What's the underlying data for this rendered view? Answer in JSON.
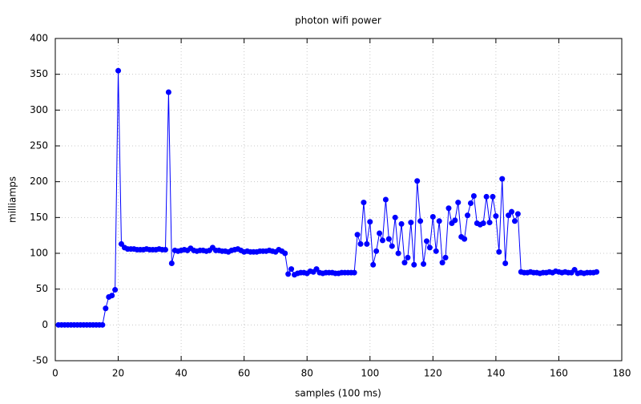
{
  "chart_data": {
    "type": "line",
    "title": "photon wifi power",
    "x_label": "samples (100 ms)",
    "y_label": "milliamps",
    "x": [
      1,
      2,
      3,
      4,
      5,
      6,
      7,
      8,
      9,
      10,
      11,
      12,
      13,
      14,
      15,
      16,
      17,
      18,
      19,
      20,
      21,
      22,
      23,
      24,
      25,
      26,
      27,
      28,
      29,
      30,
      31,
      32,
      33,
      34,
      35,
      36,
      37,
      38,
      39,
      40,
      41,
      42,
      43,
      44,
      45,
      46,
      47,
      48,
      49,
      50,
      51,
      52,
      53,
      54,
      55,
      56,
      57,
      58,
      59,
      60,
      61,
      62,
      63,
      64,
      65,
      66,
      67,
      68,
      69,
      70,
      71,
      72,
      73,
      74,
      75,
      76,
      77,
      78,
      79,
      80,
      81,
      82,
      83,
      84,
      85,
      86,
      87,
      88,
      89,
      90,
      91,
      92,
      93,
      94,
      95,
      96,
      97,
      98,
      99,
      100,
      101,
      102,
      103,
      104,
      105,
      106,
      107,
      108,
      109,
      110,
      111,
      112,
      113,
      114,
      115,
      116,
      117,
      118,
      119,
      120,
      121,
      122,
      123,
      124,
      125,
      126,
      127,
      128,
      129,
      130,
      131,
      132,
      133,
      134,
      135,
      136,
      137,
      138,
      139,
      140,
      141,
      142,
      143,
      144,
      145,
      146,
      147,
      148,
      149,
      150,
      151,
      152,
      153,
      154,
      155,
      156,
      157,
      158,
      159,
      160,
      161,
      162,
      163,
      164,
      165,
      166,
      167,
      168,
      169,
      170,
      171,
      172
    ],
    "series": [
      {
        "color": "#0000ff",
        "values": [
          0,
          0,
          0,
          0,
          0,
          0,
          0,
          0,
          0,
          0,
          0,
          0,
          0,
          0,
          0,
          23,
          39,
          41,
          49,
          355,
          113,
          108,
          106,
          106,
          106,
          105,
          105,
          105,
          106,
          105,
          105,
          105,
          106,
          105,
          105,
          325,
          86,
          104,
          103,
          104,
          105,
          104,
          107,
          104,
          103,
          104,
          104,
          103,
          104,
          108,
          104,
          104,
          103,
          103,
          102,
          104,
          105,
          106,
          104,
          102,
          103,
          102,
          102,
          102,
          103,
          103,
          103,
          104,
          103,
          102,
          105,
          103,
          100,
          71,
          78,
          70,
          72,
          73,
          73,
          72,
          75,
          74,
          78,
          73,
          72,
          73,
          73,
          73,
          72,
          72,
          73,
          73,
          73,
          73,
          73,
          126,
          113,
          171,
          113,
          144,
          84,
          103,
          128,
          118,
          175,
          120,
          110,
          150,
          100,
          141,
          87,
          94,
          143,
          84,
          201,
          145,
          85,
          117,
          108,
          151,
          103,
          145,
          87,
          94,
          163,
          142,
          146,
          171,
          123,
          120,
          153,
          170,
          180,
          142,
          140,
          142,
          179,
          143,
          179,
          152,
          102,
          204,
          86,
          153,
          158,
          145,
          155,
          74,
          73,
          73,
          74,
          73,
          73,
          72,
          73,
          73,
          74,
          73,
          75,
          74,
          73,
          74,
          73,
          73,
          77,
          72,
          73,
          72,
          73,
          73,
          73,
          74
        ]
      }
    ],
    "xlim": [
      0,
      180
    ],
    "xticks": [
      0,
      20,
      40,
      60,
      80,
      100,
      120,
      140,
      160,
      180
    ],
    "ylim": [
      -50,
      400
    ],
    "yticks": [
      -50,
      0,
      50,
      100,
      150,
      200,
      250,
      300,
      350,
      400
    ],
    "grid": true
  }
}
